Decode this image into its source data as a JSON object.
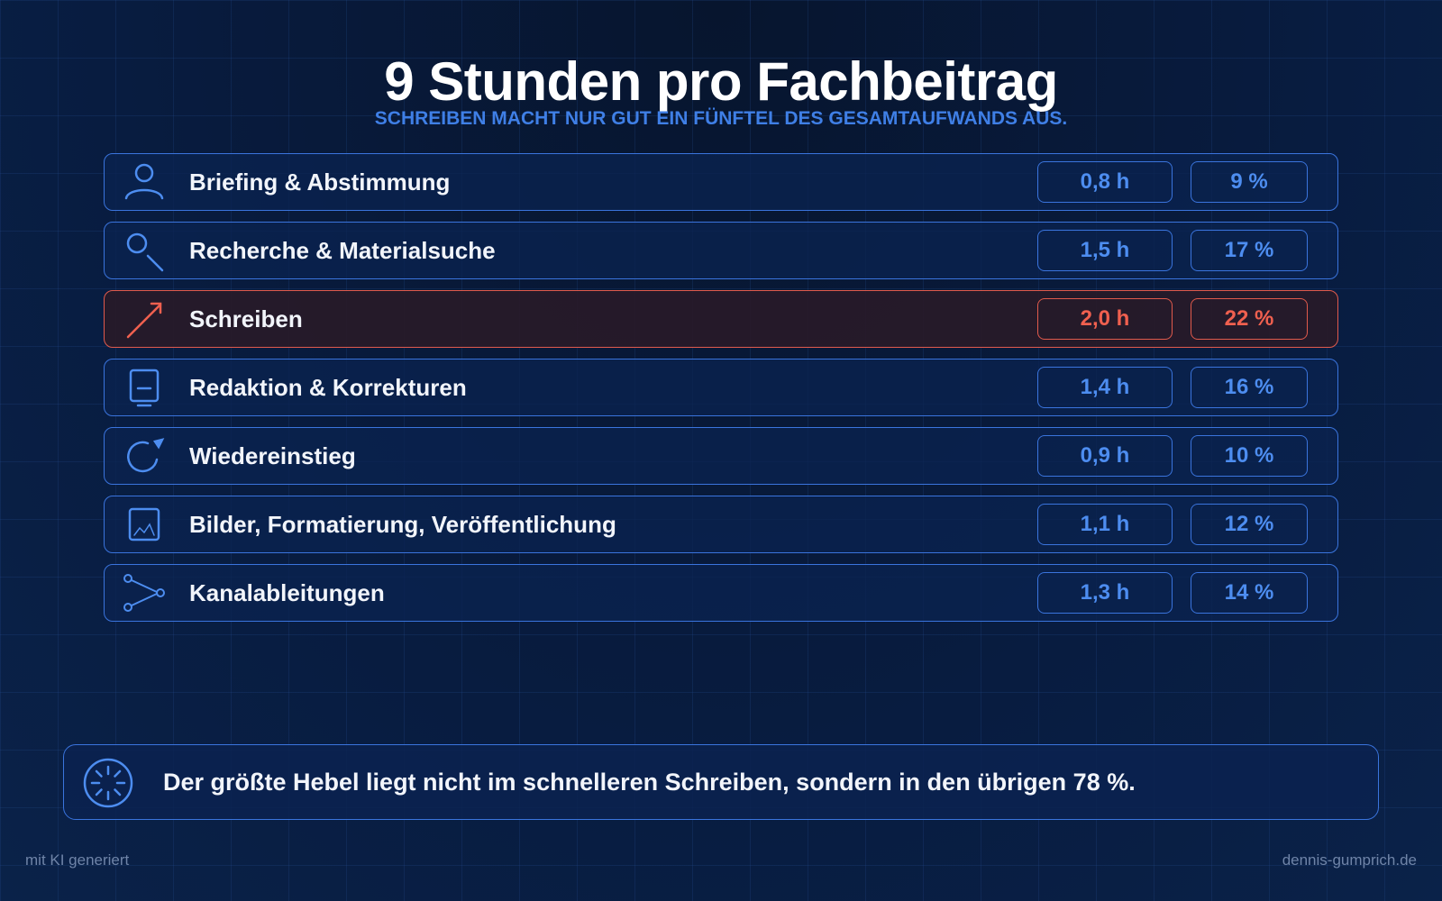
{
  "header": {
    "title": "9 Stunden pro Fachbeitrag",
    "subtitle": "SCHREIBEN MACHT NUR GUT EIN FÜNFTEL DES GESAMTAUFWANDS AUS."
  },
  "rows": [
    {
      "label": "Briefing & Abstimmung",
      "hours": "0,8 h",
      "percent": "9 %",
      "icon": "user-icon"
    },
    {
      "label": "Recherche & Materialsuche",
      "hours": "1,5 h",
      "percent": "17 %",
      "icon": "search-icon"
    },
    {
      "label": "Schreiben",
      "hours": "2,0 h",
      "percent": "22 %",
      "icon": "pen-arrow-icon",
      "highlight": true
    },
    {
      "label": "Redaktion & Korrekturen",
      "hours": "1,4 h",
      "percent": "16 %",
      "icon": "document-icon"
    },
    {
      "label": "Wiedereinstieg",
      "hours": "0,9 h",
      "percent": "10 %",
      "icon": "refresh-icon"
    },
    {
      "label": "Bilder, Formatierung, Veröffentlichung",
      "hours": "1,1 h",
      "percent": "12 %",
      "icon": "image-icon"
    },
    {
      "label": "Kanalableitungen",
      "hours": "1,3 h",
      "percent": "14 %",
      "icon": "share-icon"
    }
  ],
  "callout": {
    "text": "Der größte Hebel liegt nicht im schnelleren Schreiben, sondern in den übrigen 78 %.",
    "icon": "sparkle-icon"
  },
  "footer": {
    "left": "mit KI generiert",
    "right": "dennis-gumprich.de"
  },
  "colors": {
    "accent": "#3a74dd",
    "highlight": "#e05a4c",
    "background": "#061633"
  }
}
